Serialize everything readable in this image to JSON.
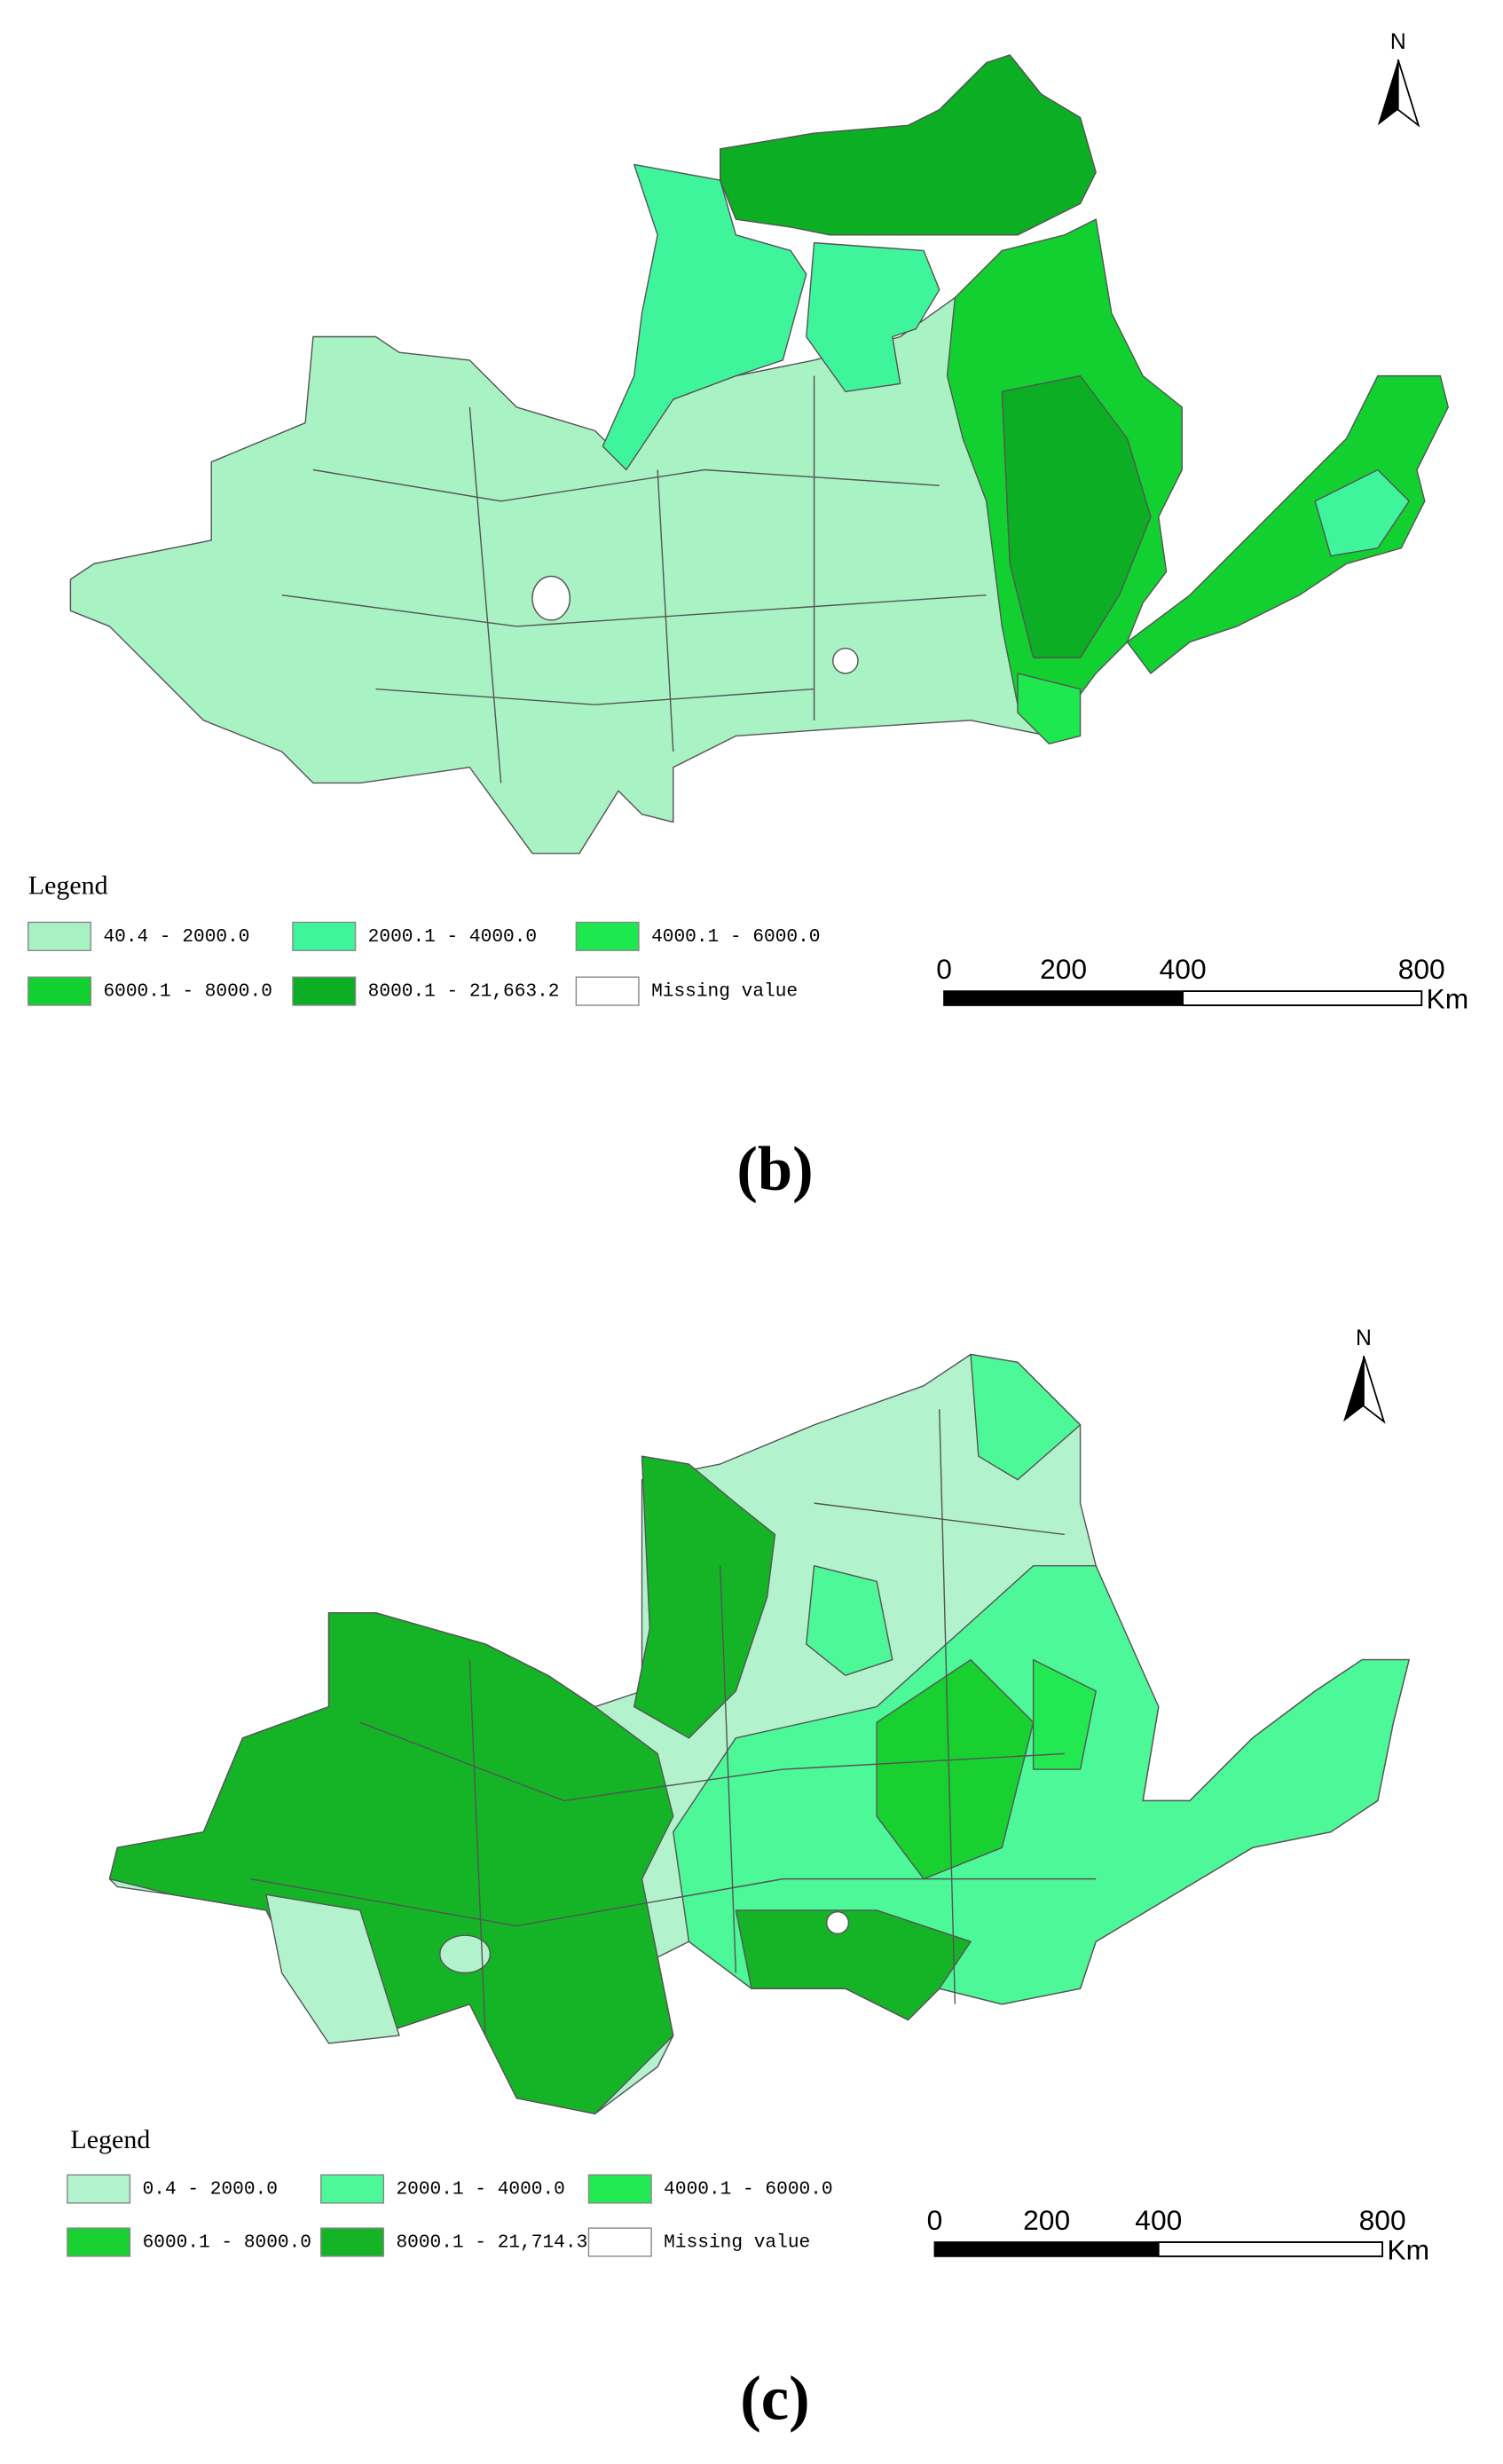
{
  "panels": [
    {
      "caption": "(b)",
      "north": "N",
      "legend": {
        "title": "Legend",
        "items": [
          {
            "label": "40.4 - 2000.0",
            "color": "#a8f2c4"
          },
          {
            "label": "2000.1 - 4000.0",
            "color": "#3ff59c"
          },
          {
            "label": "4000.1 - 6000.0",
            "color": "#1de84e"
          },
          {
            "label": "6000.1 - 8000.0",
            "color": "#12d030"
          },
          {
            "label": "8000.1 - 21,663.2",
            "color": "#0cae24"
          },
          {
            "label": "Missing value",
            "color": "#ffffff"
          }
        ]
      },
      "scale_bar": {
        "ticks": [
          "0",
          "200",
          "400",
          "800"
        ],
        "unit": "Km"
      }
    },
    {
      "caption": "(c)",
      "north": "N",
      "legend": {
        "title": "Legend",
        "items": [
          {
            "label": "0.4 - 2000.0",
            "color": "#b2f2cc"
          },
          {
            "label": "2000.1 - 4000.0",
            "color": "#4cf898"
          },
          {
            "label": "4000.1 - 6000.0",
            "color": "#22e852"
          },
          {
            "label": "6000.1 - 8000.0",
            "color": "#18d030"
          },
          {
            "label": "8000.1 - 21,714.3",
            "color": "#14b426"
          },
          {
            "label": "Missing value",
            "color": "#ffffff"
          }
        ]
      },
      "scale_bar": {
        "ticks": [
          "0",
          "200",
          "400",
          "800"
        ],
        "unit": "Km"
      }
    }
  ]
}
